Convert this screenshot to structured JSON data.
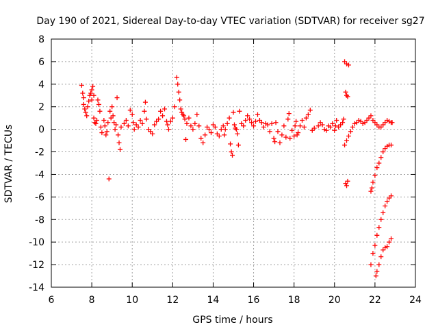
{
  "chart_data": {
    "type": "scatter",
    "title": "Day 190 of 2021, Sidereal Day-to-day VTEC variation (SDTVAR) for receiver sg27",
    "xlabel": "GPS time / hours",
    "ylabel": "SDTVAR / TECUs",
    "xlim": [
      6,
      24
    ],
    "ylim": [
      -14,
      8
    ],
    "xticks": [
      6,
      8,
      10,
      12,
      14,
      16,
      18,
      20,
      22,
      24
    ],
    "yticks": [
      -14,
      -12,
      -10,
      -8,
      -6,
      -4,
      -2,
      0,
      2,
      4,
      6,
      8
    ],
    "grid": true,
    "marker": "+",
    "color": "#ff0000",
    "series": [
      {
        "name": "SDTVAR",
        "points": [
          [
            7.5,
            3.9
          ],
          [
            7.55,
            3.2
          ],
          [
            7.6,
            2.8
          ],
          [
            7.6,
            2.2
          ],
          [
            7.65,
            1.8
          ],
          [
            7.7,
            1.5
          ],
          [
            7.75,
            1.2
          ],
          [
            7.8,
            2.0
          ],
          [
            7.85,
            2.5
          ],
          [
            7.9,
            3.0
          ],
          [
            7.95,
            3.2
          ],
          [
            8.0,
            3.5
          ],
          [
            8.0,
            2.6
          ],
          [
            8.05,
            3.8
          ],
          [
            8.1,
            3.0
          ],
          [
            8.1,
            1.0
          ],
          [
            8.15,
            0.6
          ],
          [
            8.2,
            0.5
          ],
          [
            8.25,
            0.8
          ],
          [
            8.3,
            2.6
          ],
          [
            8.35,
            2.2
          ],
          [
            8.4,
            1.6
          ],
          [
            8.45,
            0.2
          ],
          [
            8.5,
            -0.3
          ],
          [
            8.6,
            0.8
          ],
          [
            8.65,
            0.3
          ],
          [
            8.7,
            -0.5
          ],
          [
            8.75,
            -0.2
          ],
          [
            8.8,
            0.6
          ],
          [
            8.85,
            -4.4
          ],
          [
            8.9,
            1.6
          ],
          [
            8.95,
            1.0
          ],
          [
            9.0,
            2.0
          ],
          [
            9.05,
            1.2
          ],
          [
            9.1,
            0.6
          ],
          [
            9.15,
            0.0
          ],
          [
            9.2,
            0.4
          ],
          [
            9.25,
            2.8
          ],
          [
            9.3,
            -0.5
          ],
          [
            9.35,
            -1.2
          ],
          [
            9.4,
            -1.8
          ],
          [
            9.45,
            0.2
          ],
          [
            9.6,
            0.5
          ],
          [
            9.7,
            0.8
          ],
          [
            9.8,
            0.3
          ],
          [
            9.9,
            1.7
          ],
          [
            10.0,
            1.3
          ],
          [
            10.05,
            0.6
          ],
          [
            10.1,
            0.0
          ],
          [
            10.2,
            0.4
          ],
          [
            10.3,
            0.2
          ],
          [
            10.4,
            0.8
          ],
          [
            10.5,
            0.5
          ],
          [
            10.6,
            1.6
          ],
          [
            10.65,
            2.4
          ],
          [
            10.7,
            0.9
          ],
          [
            10.8,
            0.0
          ],
          [
            10.9,
            -0.2
          ],
          [
            11.0,
            -0.4
          ],
          [
            11.1,
            0.4
          ],
          [
            11.2,
            0.7
          ],
          [
            11.3,
            0.9
          ],
          [
            11.4,
            1.6
          ],
          [
            11.5,
            1.2
          ],
          [
            11.6,
            1.8
          ],
          [
            11.7,
            0.7
          ],
          [
            11.75,
            0.4
          ],
          [
            11.8,
            0.0
          ],
          [
            11.9,
            0.7
          ],
          [
            12.0,
            1.0
          ],
          [
            12.1,
            2.0
          ],
          [
            12.2,
            4.6
          ],
          [
            12.25,
            4.0
          ],
          [
            12.3,
            3.3
          ],
          [
            12.35,
            2.6
          ],
          [
            12.4,
            1.8
          ],
          [
            12.45,
            1.5
          ],
          [
            12.5,
            1.3
          ],
          [
            12.55,
            1.2
          ],
          [
            12.6,
            0.9
          ],
          [
            12.65,
            -0.9
          ],
          [
            12.7,
            0.5
          ],
          [
            12.8,
            1.0
          ],
          [
            12.9,
            0.3
          ],
          [
            13.0,
            0.0
          ],
          [
            13.1,
            0.5
          ],
          [
            13.2,
            1.3
          ],
          [
            13.3,
            0.3
          ],
          [
            13.4,
            -0.8
          ],
          [
            13.5,
            -1.2
          ],
          [
            13.6,
            -0.5
          ],
          [
            13.7,
            0.2
          ],
          [
            13.8,
            0.0
          ],
          [
            13.9,
            -0.3
          ],
          [
            14.0,
            0.4
          ],
          [
            14.1,
            0.2
          ],
          [
            14.2,
            -0.4
          ],
          [
            14.3,
            -0.6
          ],
          [
            14.4,
            0.0
          ],
          [
            14.5,
            0.3
          ],
          [
            14.55,
            -0.5
          ],
          [
            14.6,
            0.0
          ],
          [
            14.7,
            0.5
          ],
          [
            14.8,
            1.0
          ],
          [
            14.85,
            -1.3
          ],
          [
            14.9,
            -2.0
          ],
          [
            14.95,
            -2.3
          ],
          [
            15.0,
            1.5
          ],
          [
            15.05,
            0.4
          ],
          [
            15.1,
            0.1
          ],
          [
            15.15,
            0.0
          ],
          [
            15.2,
            -0.4
          ],
          [
            15.25,
            -1.4
          ],
          [
            15.3,
            1.6
          ],
          [
            15.4,
            0.5
          ],
          [
            15.5,
            0.3
          ],
          [
            15.6,
            0.8
          ],
          [
            15.7,
            1.2
          ],
          [
            15.8,
            0.9
          ],
          [
            15.9,
            0.6
          ],
          [
            16.0,
            0.3
          ],
          [
            16.1,
            0.7
          ],
          [
            16.2,
            1.3
          ],
          [
            16.3,
            0.8
          ],
          [
            16.4,
            0.6
          ],
          [
            16.5,
            0.2
          ],
          [
            16.6,
            0.5
          ],
          [
            16.7,
            0.4
          ],
          [
            16.8,
            -0.2
          ],
          [
            16.9,
            0.5
          ],
          [
            17.0,
            -0.8
          ],
          [
            17.05,
            -1.1
          ],
          [
            17.1,
            0.6
          ],
          [
            17.2,
            -0.2
          ],
          [
            17.3,
            -1.2
          ],
          [
            17.4,
            -0.5
          ],
          [
            17.5,
            0.3
          ],
          [
            17.6,
            -0.7
          ],
          [
            17.7,
            0.9
          ],
          [
            17.75,
            1.4
          ],
          [
            17.8,
            -0.8
          ],
          [
            17.9,
            -0.1
          ],
          [
            18.0,
            -0.6
          ],
          [
            18.05,
            0.3
          ],
          [
            18.1,
            0.7
          ],
          [
            18.15,
            -0.5
          ],
          [
            18.2,
            -0.3
          ],
          [
            18.3,
            0.3
          ],
          [
            18.4,
            0.8
          ],
          [
            18.5,
            0.2
          ],
          [
            18.6,
            1.0
          ],
          [
            18.7,
            1.3
          ],
          [
            18.8,
            1.7
          ],
          [
            18.9,
            -0.1
          ],
          [
            19.0,
            0.1
          ],
          [
            19.2,
            0.3
          ],
          [
            19.3,
            0.6
          ],
          [
            19.4,
            0.4
          ],
          [
            19.5,
            0.0
          ],
          [
            19.6,
            -0.1
          ],
          [
            19.7,
            0.3
          ],
          [
            19.8,
            0.2
          ],
          [
            19.9,
            0.5
          ],
          [
            20.0,
            -0.1
          ],
          [
            20.05,
            0.3
          ],
          [
            20.1,
            0.8
          ],
          [
            20.2,
            0.2
          ],
          [
            20.3,
            0.4
          ],
          [
            20.4,
            0.6
          ],
          [
            20.45,
            0.9
          ],
          [
            20.5,
            6.0
          ],
          [
            20.6,
            5.8
          ],
          [
            20.7,
            5.7
          ],
          [
            20.55,
            3.3
          ],
          [
            20.6,
            3.0
          ],
          [
            20.65,
            2.9
          ],
          [
            20.55,
            -4.8
          ],
          [
            20.6,
            -5.0
          ],
          [
            20.65,
            -4.6
          ],
          [
            20.5,
            -1.4
          ],
          [
            20.6,
            -1.0
          ],
          [
            20.7,
            -0.6
          ],
          [
            20.8,
            -0.2
          ],
          [
            20.9,
            0.2
          ],
          [
            21.0,
            0.5
          ],
          [
            21.1,
            0.6
          ],
          [
            21.2,
            0.8
          ],
          [
            21.3,
            0.7
          ],
          [
            21.4,
            0.5
          ],
          [
            21.5,
            0.6
          ],
          [
            21.6,
            0.8
          ],
          [
            21.7,
            1.0
          ],
          [
            21.8,
            1.2
          ],
          [
            21.9,
            0.8
          ],
          [
            22.0,
            0.6
          ],
          [
            22.1,
            0.4
          ],
          [
            22.2,
            0.2
          ],
          [
            22.3,
            0.2
          ],
          [
            22.4,
            0.4
          ],
          [
            22.5,
            0.6
          ],
          [
            22.6,
            0.8
          ],
          [
            22.7,
            0.7
          ],
          [
            22.8,
            0.6
          ],
          [
            22.85,
            0.6
          ],
          [
            21.8,
            -5.5
          ],
          [
            21.85,
            -5.2
          ],
          [
            21.9,
            -4.7
          ],
          [
            22.0,
            -4.1
          ],
          [
            22.1,
            -3.4
          ],
          [
            22.2,
            -3.0
          ],
          [
            22.3,
            -2.5
          ],
          [
            22.4,
            -2.0
          ],
          [
            22.5,
            -1.7
          ],
          [
            22.6,
            -1.5
          ],
          [
            22.7,
            -1.4
          ],
          [
            22.8,
            -1.4
          ],
          [
            21.8,
            -12.0
          ],
          [
            21.9,
            -11.0
          ],
          [
            22.0,
            -10.3
          ],
          [
            22.1,
            -9.4
          ],
          [
            22.2,
            -8.7
          ],
          [
            22.3,
            -8.0
          ],
          [
            22.4,
            -7.4
          ],
          [
            22.5,
            -6.8
          ],
          [
            22.6,
            -6.4
          ],
          [
            22.7,
            -6.1
          ],
          [
            22.8,
            -5.9
          ],
          [
            22.05,
            -13.0
          ],
          [
            22.1,
            -12.6
          ],
          [
            22.2,
            -12.0
          ],
          [
            22.3,
            -11.3
          ],
          [
            22.4,
            -10.7
          ],
          [
            22.5,
            -10.5
          ],
          [
            22.6,
            -10.4
          ],
          [
            22.7,
            -10.0
          ],
          [
            22.8,
            -9.7
          ]
        ]
      }
    ]
  }
}
